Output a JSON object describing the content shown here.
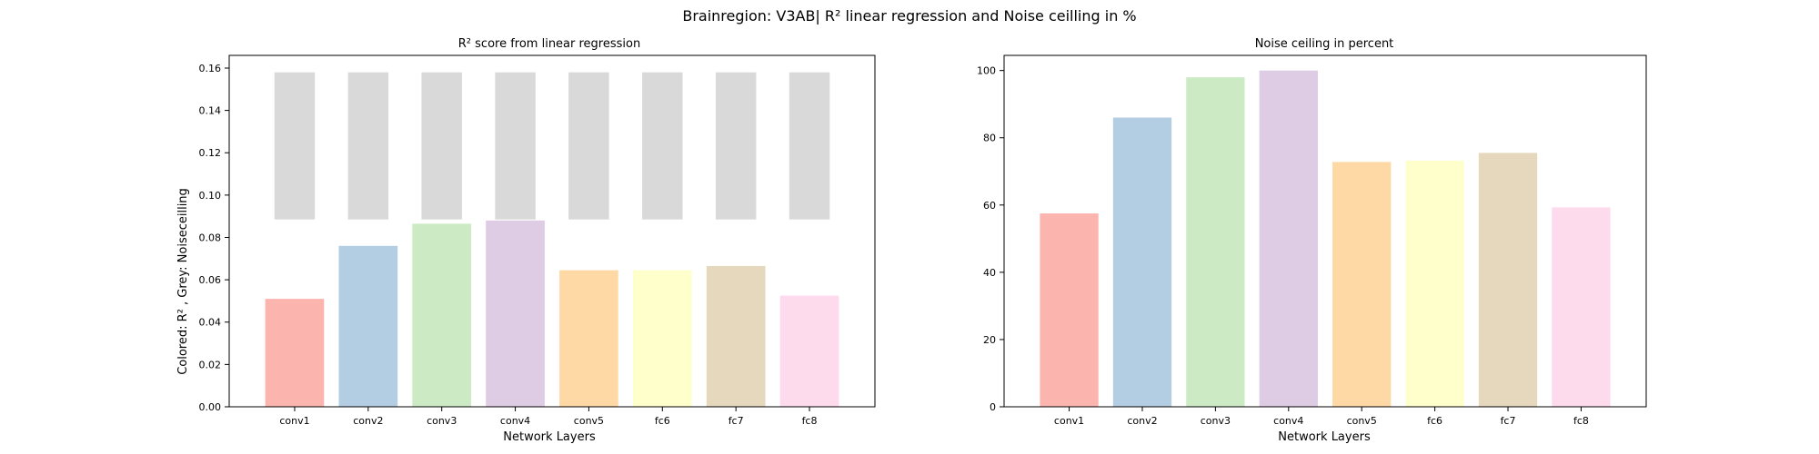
{
  "figure": {
    "suptitle": "Brainregion: V3AB| R² linear regression and Noise ceilling in %"
  },
  "chart_data": [
    {
      "type": "bar",
      "title": "R² score from linear regression",
      "xlabel": "Network Layers",
      "ylabel": "Colored: R² , Grey: Noiseceilling",
      "categories": [
        "conv1",
        "conv2",
        "conv3",
        "conv4",
        "conv5",
        "fc6",
        "fc7",
        "fc8"
      ],
      "ylim": [
        0,
        0.166
      ],
      "yticks": [
        "0.00",
        "0.02",
        "0.04",
        "0.06",
        "0.08",
        "0.10",
        "0.12",
        "0.14",
        "0.16"
      ],
      "grid": false,
      "series": [
        {
          "kind": "bar",
          "values": [
            0.051,
            0.076,
            0.0865,
            0.088,
            0.0645,
            0.0645,
            0.0665,
            0.0525
          ],
          "colors": [
            "#fbb4ae",
            "#b3cde3",
            "#ccebc5",
            "#decbe4",
            "#fed9a6",
            "#ffffcc",
            "#e5d8bd",
            "#fddaec"
          ]
        },
        {
          "kind": "range",
          "bottoms": [
            0.0885,
            0.0885,
            0.0885,
            0.0885,
            0.0885,
            0.0885,
            0.0885,
            0.0885
          ],
          "tops": [
            0.158,
            0.158,
            0.158,
            0.158,
            0.158,
            0.158,
            0.158,
            0.158
          ],
          "color": "#d9d9d9"
        }
      ]
    },
    {
      "type": "bar",
      "title": "Noise ceiling in percent",
      "xlabel": "Network Layers",
      "ylabel": "",
      "categories": [
        "conv1",
        "conv2",
        "conv3",
        "conv4",
        "conv5",
        "fc6",
        "fc7",
        "fc8"
      ],
      "ylim": [
        0,
        104.5
      ],
      "yticks": [
        "0",
        "20",
        "40",
        "60",
        "80",
        "100"
      ],
      "grid": false,
      "series": [
        {
          "kind": "bar",
          "values": [
            57.5,
            86,
            98,
            100,
            72.8,
            73.2,
            75.5,
            59.3
          ],
          "colors": [
            "#fbb4ae",
            "#b3cde3",
            "#ccebc5",
            "#decbe4",
            "#fed9a6",
            "#ffffcc",
            "#e5d8bd",
            "#fddaec"
          ]
        }
      ]
    }
  ]
}
